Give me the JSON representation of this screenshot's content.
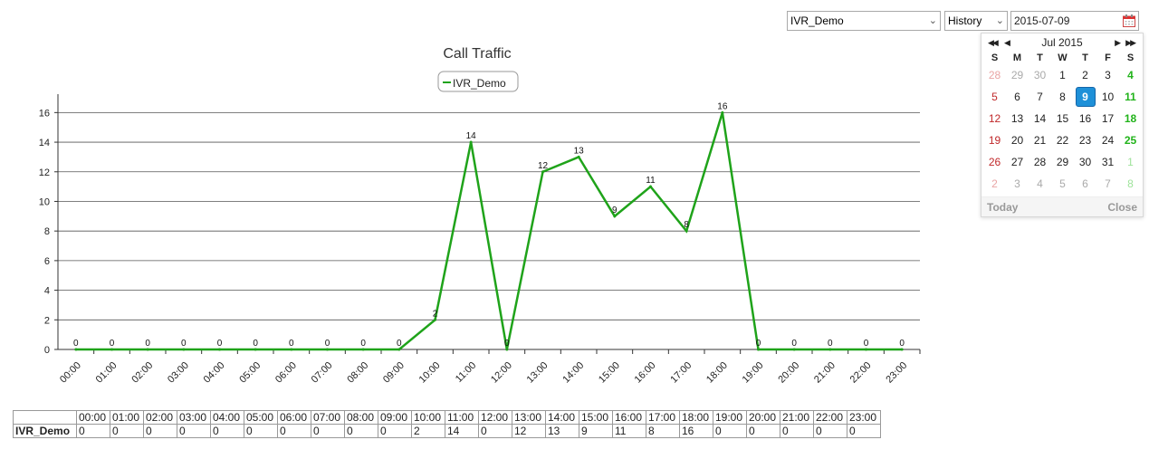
{
  "toolbar": {
    "campaign_select": "IVR_Demo",
    "mode_select": "History",
    "date_value": "2015-07-09"
  },
  "calendar": {
    "month_label": "Jul 2015",
    "weekdays": [
      "S",
      "M",
      "T",
      "W",
      "T",
      "F",
      "S"
    ],
    "weeks": [
      [
        28,
        29,
        30,
        1,
        2,
        3,
        4
      ],
      [
        5,
        6,
        7,
        8,
        9,
        10,
        11
      ],
      [
        12,
        13,
        14,
        15,
        16,
        17,
        18
      ],
      [
        19,
        20,
        21,
        22,
        23,
        24,
        25
      ],
      [
        26,
        27,
        28,
        29,
        30,
        31,
        1
      ],
      [
        2,
        3,
        4,
        5,
        6,
        7,
        8
      ]
    ],
    "selected_day": 9,
    "today_label": "Today",
    "close_label": "Close"
  },
  "chart_data": {
    "type": "line",
    "title": "Call Traffic",
    "xlabel": "",
    "ylabel": "",
    "categories": [
      "00:00",
      "01:00",
      "02:00",
      "03:00",
      "04:00",
      "05:00",
      "06:00",
      "07:00",
      "08:00",
      "09:00",
      "10:00",
      "11:00",
      "12:00",
      "13:00",
      "14:00",
      "15:00",
      "16:00",
      "17:00",
      "18:00",
      "19:00",
      "20:00",
      "21:00",
      "22:00",
      "23:00"
    ],
    "series": [
      {
        "name": "IVR_Demo",
        "color": "#1fa31a",
        "values": [
          0,
          0,
          0,
          0,
          0,
          0,
          0,
          0,
          0,
          0,
          2,
          14,
          0,
          12,
          13,
          9,
          11,
          8,
          16,
          0,
          0,
          0,
          0,
          0
        ]
      }
    ],
    "ylim": [
      0,
      17
    ],
    "yticks": [
      0,
      2,
      4,
      6,
      8,
      10,
      12,
      14,
      16
    ],
    "grid": true,
    "legend_position": "top-center",
    "data_labels": true
  }
}
